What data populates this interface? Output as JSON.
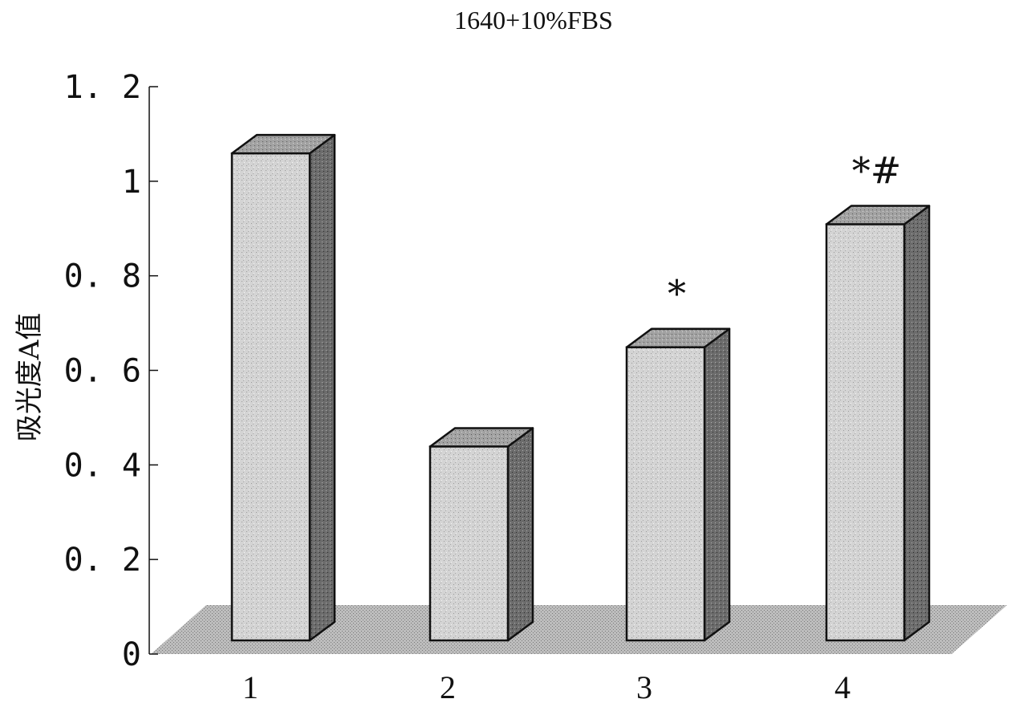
{
  "chart_data": {
    "type": "bar",
    "style": "3d",
    "title": "1640+10%FBS",
    "xlabel": "",
    "ylabel": "吸光度A值",
    "categories": [
      "1",
      "2",
      "3",
      "4"
    ],
    "values": [
      1.03,
      0.41,
      0.62,
      0.88
    ],
    "annotations": [
      "",
      "",
      "*",
      "*#"
    ],
    "ylim": [
      0,
      1.2
    ],
    "yticks": [
      "0",
      "0. 2",
      "0. 4",
      "0. 6",
      "0. 8",
      "1",
      "1. 2"
    ],
    "grid": false,
    "legend": "none",
    "colors": {
      "bar_front": "#d4d4d4",
      "bar_side": "#6c6c6c",
      "bar_top": "#a2a2a2",
      "floor": "#bdbdbd",
      "stroke": "#111111"
    }
  }
}
